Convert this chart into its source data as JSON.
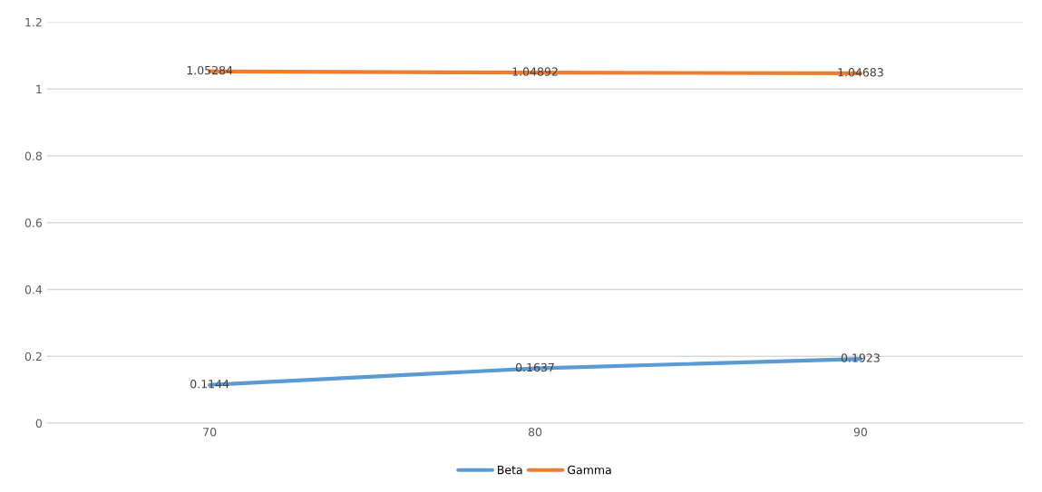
{
  "chart_data": {
    "type": "line",
    "categories": [
      "70",
      "80",
      "90"
    ],
    "series": [
      {
        "name": "Beta",
        "color": "#5b9bd5",
        "values": [
          0.1144,
          0.1637,
          0.1923
        ]
      },
      {
        "name": "Gamma",
        "color": "#ed7d31",
        "values": [
          1.05284,
          1.04892,
          1.04683
        ]
      }
    ],
    "ylim": [
      0,
      1.2
    ],
    "yticks": [
      0,
      0.2,
      0.4,
      0.6,
      0.8,
      1,
      1.2
    ],
    "grid": "y",
    "legend": "bottom",
    "data_labels": true,
    "marker": "none",
    "line_style": "solid"
  }
}
